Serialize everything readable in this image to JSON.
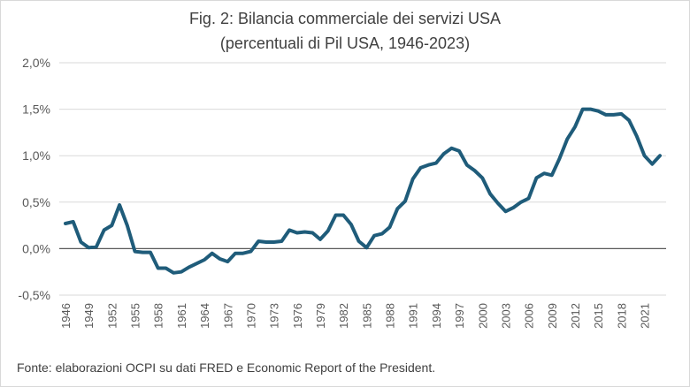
{
  "chart_data": {
    "type": "line",
    "title": "Fig. 2: Bilancia commerciale dei servizi USA",
    "subtitle": "(percentuali di Pil USA, 1946-2023)",
    "source": "Fonte: elaborazioni OCPI su dati FRED e Economic Report of the President.",
    "xlabel": "",
    "ylabel": "",
    "ylim": [
      -0.5,
      2.0
    ],
    "yticks": [
      "2,0%",
      "1,5%",
      "1,0%",
      "0,5%",
      "0,0%",
      "-0,5%"
    ],
    "ytick_values": [
      2.0,
      1.5,
      1.0,
      0.5,
      0.0,
      -0.5
    ],
    "xticks": [
      "1946",
      "1949",
      "1952",
      "1955",
      "1958",
      "1961",
      "1964",
      "1967",
      "1970",
      "1973",
      "1976",
      "1979",
      "1982",
      "1985",
      "1988",
      "1991",
      "1994",
      "1997",
      "2000",
      "2003",
      "2006",
      "2009",
      "2012",
      "2015",
      "2018",
      "2021"
    ],
    "grid": true,
    "legend": "none",
    "line_color": "#1f5c7a",
    "x": [
      1946,
      1947,
      1948,
      1949,
      1950,
      1951,
      1952,
      1953,
      1954,
      1955,
      1956,
      1957,
      1958,
      1959,
      1960,
      1961,
      1962,
      1963,
      1964,
      1965,
      1966,
      1967,
      1968,
      1969,
      1970,
      1971,
      1972,
      1973,
      1974,
      1975,
      1976,
      1977,
      1978,
      1979,
      1980,
      1981,
      1982,
      1983,
      1984,
      1985,
      1986,
      1987,
      1988,
      1989,
      1990,
      1991,
      1992,
      1993,
      1994,
      1995,
      1996,
      1997,
      1998,
      1999,
      2000,
      2001,
      2002,
      2003,
      2004,
      2005,
      2006,
      2007,
      2008,
      2009,
      2010,
      2011,
      2012,
      2013,
      2014,
      2015,
      2016,
      2017,
      2018,
      2019,
      2020,
      2021,
      2022,
      2023
    ],
    "values": [
      0.27,
      0.29,
      0.07,
      0.01,
      0.02,
      0.2,
      0.25,
      0.47,
      0.25,
      -0.03,
      -0.04,
      -0.04,
      -0.21,
      -0.21,
      -0.26,
      -0.25,
      -0.2,
      -0.16,
      -0.12,
      -0.05,
      -0.11,
      -0.14,
      -0.05,
      -0.05,
      -0.03,
      0.08,
      0.07,
      0.07,
      0.08,
      0.2,
      0.17,
      0.18,
      0.17,
      0.1,
      0.19,
      0.36,
      0.36,
      0.26,
      0.08,
      0.01,
      0.14,
      0.16,
      0.23,
      0.43,
      0.51,
      0.75,
      0.87,
      0.9,
      0.92,
      1.02,
      1.08,
      1.05,
      0.9,
      0.84,
      0.76,
      0.59,
      0.49,
      0.4,
      0.44,
      0.5,
      0.54,
      0.76,
      0.81,
      0.79,
      0.97,
      1.18,
      1.31,
      1.5,
      1.5,
      1.48,
      1.44,
      1.44,
      1.45,
      1.38,
      1.21,
      1.0,
      0.91,
      1.0
    ]
  }
}
